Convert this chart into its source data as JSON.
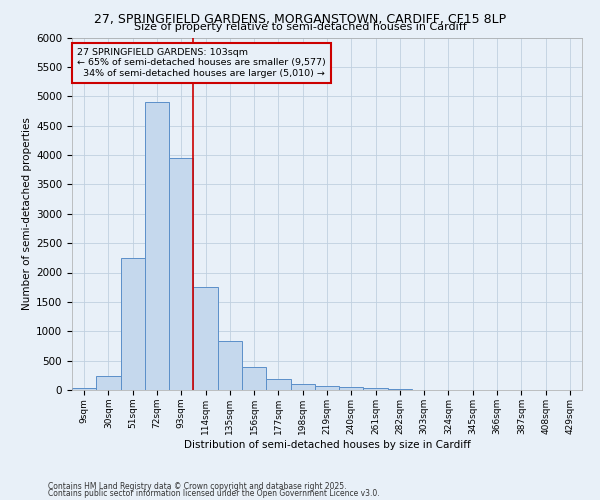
{
  "title_line1": "27, SPRINGFIELD GARDENS, MORGANSTOWN, CARDIFF, CF15 8LP",
  "title_line2": "Size of property relative to semi-detached houses in Cardiff",
  "xlabel": "Distribution of semi-detached houses by size in Cardiff",
  "ylabel": "Number of semi-detached properties",
  "bin_labels": [
    "9sqm",
    "30sqm",
    "51sqm",
    "72sqm",
    "93sqm",
    "114sqm",
    "135sqm",
    "156sqm",
    "177sqm",
    "198sqm",
    "219sqm",
    "240sqm",
    "261sqm",
    "282sqm",
    "303sqm",
    "324sqm",
    "345sqm",
    "366sqm",
    "387sqm",
    "408sqm",
    "429sqm"
  ],
  "bar_values": [
    30,
    230,
    2250,
    4900,
    3950,
    1750,
    840,
    390,
    185,
    95,
    65,
    55,
    35,
    10,
    5,
    5,
    5,
    5,
    2,
    2,
    0
  ],
  "bar_color": "#c5d8ed",
  "bar_edge_color": "#5b8fc9",
  "property_size_sqm": 103,
  "property_label": "27 SPRINGFIELD GARDENS: 103sqm",
  "smaller_pct": 65,
  "smaller_n": "9,577",
  "larger_pct": 34,
  "larger_n": "5,010",
  "vline_color": "#cc0000",
  "ylim": [
    0,
    6000
  ],
  "yticks": [
    0,
    500,
    1000,
    1500,
    2000,
    2500,
    3000,
    3500,
    4000,
    4500,
    5000,
    5500,
    6000
  ],
  "grid_color": "#c0d0e0",
  "bg_color": "#e8f0f8",
  "footer1": "Contains HM Land Registry data © Crown copyright and database right 2025.",
  "footer2": "Contains public sector information licensed under the Open Government Licence v3.0."
}
